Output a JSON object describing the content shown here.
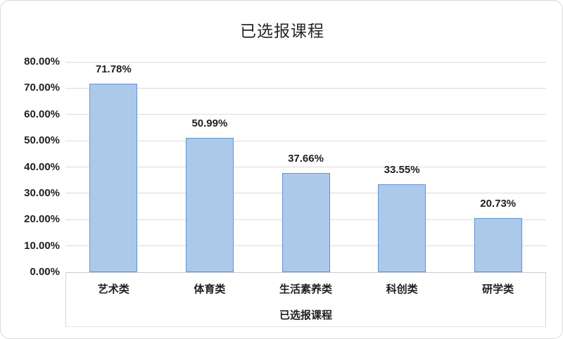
{
  "chart_data": {
    "type": "bar",
    "title": "已选报课程",
    "xlabel": "已选报课程",
    "ylabel": "",
    "categories": [
      "艺术类",
      "体育类",
      "生活素养类",
      "科创类",
      "研学类"
    ],
    "values": [
      71.78,
      50.99,
      37.66,
      33.55,
      20.73
    ],
    "value_labels": [
      "71.78%",
      "50.99%",
      "37.66%",
      "33.55%",
      "20.73%"
    ],
    "ylim": [
      0,
      80
    ],
    "ytick_values": [
      0,
      10,
      20,
      30,
      40,
      50,
      60,
      70,
      80
    ],
    "ytick_labels": [
      "0.00%",
      "10.00%",
      "20.00%",
      "30.00%",
      "40.00%",
      "50.00%",
      "60.00%",
      "70.00%",
      "80.00%"
    ],
    "grid": true,
    "legend_position": "none",
    "bar_fill_color": "#adc9ea",
    "bar_border_color": "#5d94d6",
    "gridline_color": "#dcdcdc",
    "text_color": "#1f1f1f"
  }
}
